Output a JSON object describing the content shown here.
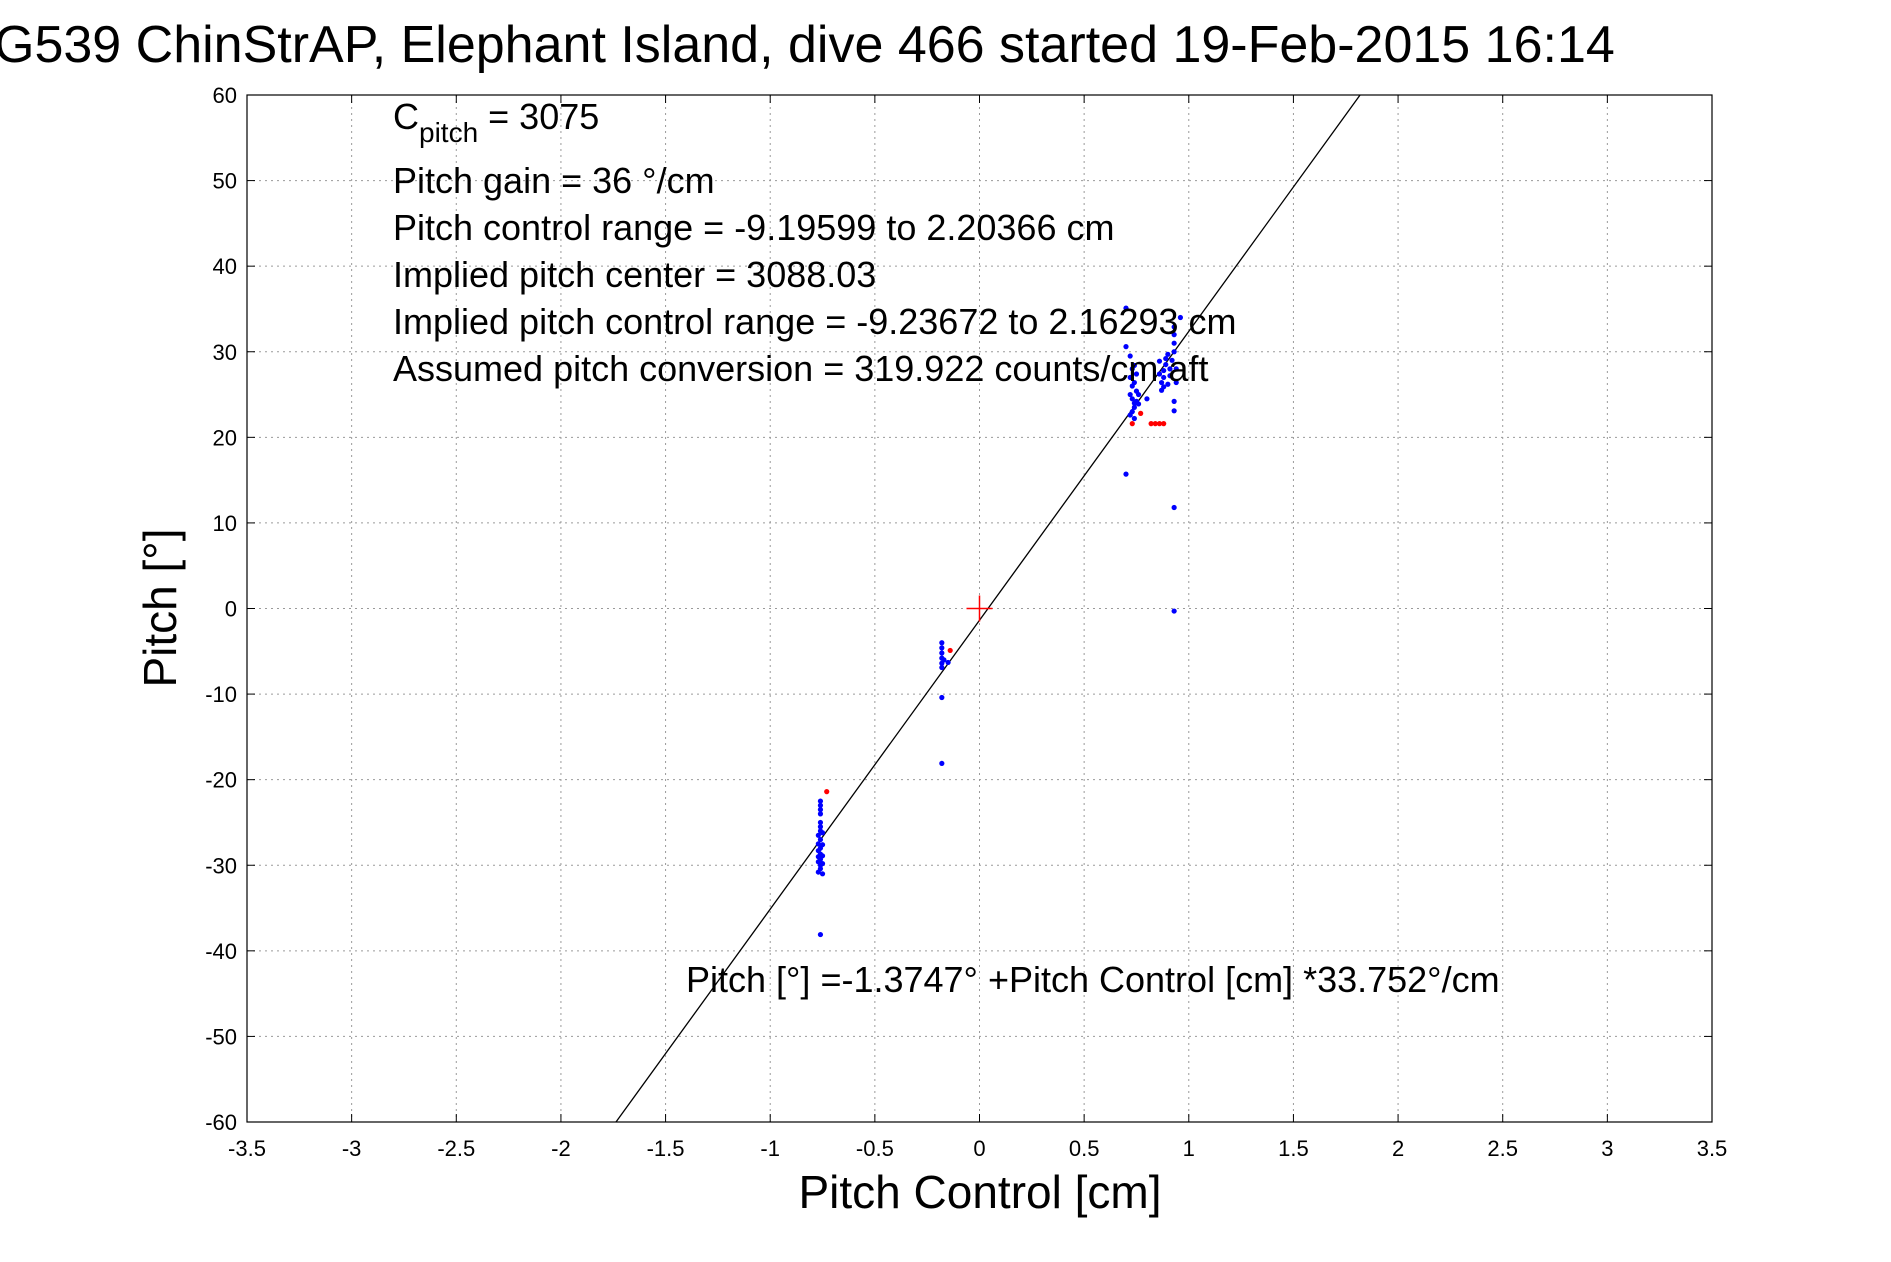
{
  "chart_data": {
    "type": "scatter",
    "title": "G539 ChinStrAP, Elephant Island, dive 466 started 19-Feb-2015 16:14",
    "xlabel": "Pitch Control [cm]",
    "ylabel": "Pitch [°]",
    "xlim": [
      -3.5,
      3.5
    ],
    "ylim": [
      -60,
      60
    ],
    "xticks": [
      -3.5,
      -3,
      -2.5,
      -2,
      -1.5,
      -1,
      -0.5,
      0,
      0.5,
      1,
      1.5,
      2,
      2.5,
      3,
      3.5
    ],
    "xtick_labels": [
      "-3.5",
      "-3",
      "-2.5",
      "-2",
      "-1.5",
      "-1",
      "-0.5",
      "0",
      "0.5",
      "1",
      "1.5",
      "2",
      "2.5",
      "3",
      "3.5"
    ],
    "yticks": [
      -60,
      -50,
      -40,
      -30,
      -20,
      -10,
      0,
      10,
      20,
      30,
      40,
      50,
      60
    ],
    "ytick_labels": [
      "-60",
      "-50",
      "-40",
      "-30",
      "-20",
      "-10",
      "0",
      "10",
      "20",
      "30",
      "40",
      "50",
      "60"
    ],
    "grid": true,
    "annotations": {
      "c_pitch_prefix": "C",
      "c_pitch_sub": "pitch",
      "c_pitch_rest": " = 3075",
      "lines": [
        "Pitch gain = 36 °/cm",
        "Pitch control range = -9.19599 to 2.20366 cm",
        "Implied pitch center = 3088.03",
        "Implied pitch control range = -9.23672 to 2.16293 cm",
        "Assumed pitch conversion = 319.922 counts/cm aft"
      ],
      "fit_equation": "Pitch [°] =-1.3747° +Pitch Control [cm] *33.752°/cm"
    },
    "fit_line": {
      "intercept": -1.3747,
      "slope": 33.752,
      "color": "#000000"
    },
    "center_marker": {
      "x": 0,
      "y": 0,
      "color": "#ff0000"
    },
    "series": [
      {
        "color": "#0000ff",
        "points": [
          [
            -0.76,
            -22.5
          ],
          [
            -0.76,
            -23
          ],
          [
            -0.76,
            -23.5
          ],
          [
            -0.76,
            -24
          ],
          [
            -0.76,
            -25
          ],
          [
            -0.76,
            -25.5
          ],
          [
            -0.76,
            -26
          ],
          [
            -0.77,
            -26.5
          ],
          [
            -0.76,
            -27
          ],
          [
            -0.77,
            -27.5
          ],
          [
            -0.76,
            -28
          ],
          [
            -0.77,
            -28.3
          ],
          [
            -0.76,
            -28.7
          ],
          [
            -0.77,
            -29
          ],
          [
            -0.76,
            -29.3
          ],
          [
            -0.77,
            -29.6
          ],
          [
            -0.76,
            -30
          ],
          [
            -0.76,
            -30.4
          ],
          [
            -0.77,
            -30.8
          ],
          [
            -0.75,
            -29.8
          ],
          [
            -0.75,
            -28.9
          ],
          [
            -0.75,
            -27.6
          ],
          [
            -0.75,
            -26.2
          ],
          [
            -0.75,
            -31.0
          ],
          [
            -0.76,
            -38.1
          ],
          [
            -0.18,
            -4.0
          ],
          [
            -0.18,
            -4.6
          ],
          [
            -0.18,
            -5.2
          ],
          [
            -0.18,
            -5.8
          ],
          [
            -0.18,
            -6.4
          ],
          [
            -0.18,
            -6.9
          ],
          [
            -0.17,
            -6.0
          ],
          [
            -0.15,
            -6.3
          ],
          [
            -0.18,
            -10.4
          ],
          [
            -0.18,
            -18.1
          ],
          [
            0.7,
            35.1
          ],
          [
            0.7,
            30.6
          ],
          [
            0.7,
            15.7
          ],
          [
            0.72,
            29.5
          ],
          [
            0.73,
            28.0
          ],
          [
            0.72,
            27.0
          ],
          [
            0.73,
            26.0
          ],
          [
            0.72,
            25.0
          ],
          [
            0.73,
            24.5
          ],
          [
            0.74,
            24.0
          ],
          [
            0.74,
            23.5
          ],
          [
            0.73,
            23.0
          ],
          [
            0.75,
            24.2
          ],
          [
            0.75,
            25.4
          ],
          [
            0.74,
            26.4
          ],
          [
            0.75,
            27.4
          ],
          [
            0.74,
            28.4
          ],
          [
            0.76,
            25.0
          ],
          [
            0.76,
            23.9
          ],
          [
            0.72,
            22.6
          ],
          [
            0.74,
            22.2
          ],
          [
            0.8,
            24.5
          ],
          [
            0.87,
            25.5
          ],
          [
            0.87,
            26.4
          ],
          [
            0.88,
            27.0
          ],
          [
            0.88,
            27.8
          ],
          [
            0.89,
            28.5
          ],
          [
            0.89,
            29.2
          ],
          [
            0.9,
            29.7
          ],
          [
            0.9,
            26.2
          ],
          [
            0.88,
            25.9
          ],
          [
            0.91,
            27.2
          ],
          [
            0.91,
            28.0
          ],
          [
            0.86,
            28.9
          ],
          [
            0.86,
            27.4
          ],
          [
            0.92,
            29.0
          ],
          [
            0.93,
            32.9
          ],
          [
            0.93,
            32.0
          ],
          [
            0.93,
            31.0
          ],
          [
            0.93,
            30.0
          ],
          [
            0.94,
            28.0
          ],
          [
            0.94,
            26.4
          ],
          [
            0.93,
            24.2
          ],
          [
            0.93,
            23.1
          ],
          [
            0.93,
            11.8
          ],
          [
            0.93,
            -0.3
          ],
          [
            0.96,
            34.0
          ]
        ]
      },
      {
        "color": "#ff0000",
        "points": [
          [
            -0.73,
            -21.4
          ],
          [
            -0.14,
            -4.9
          ],
          [
            0.73,
            21.6
          ],
          [
            0.77,
            22.8
          ],
          [
            0.82,
            21.6
          ],
          [
            0.84,
            21.6
          ],
          [
            0.86,
            21.6
          ],
          [
            0.88,
            21.6
          ]
        ]
      }
    ]
  }
}
